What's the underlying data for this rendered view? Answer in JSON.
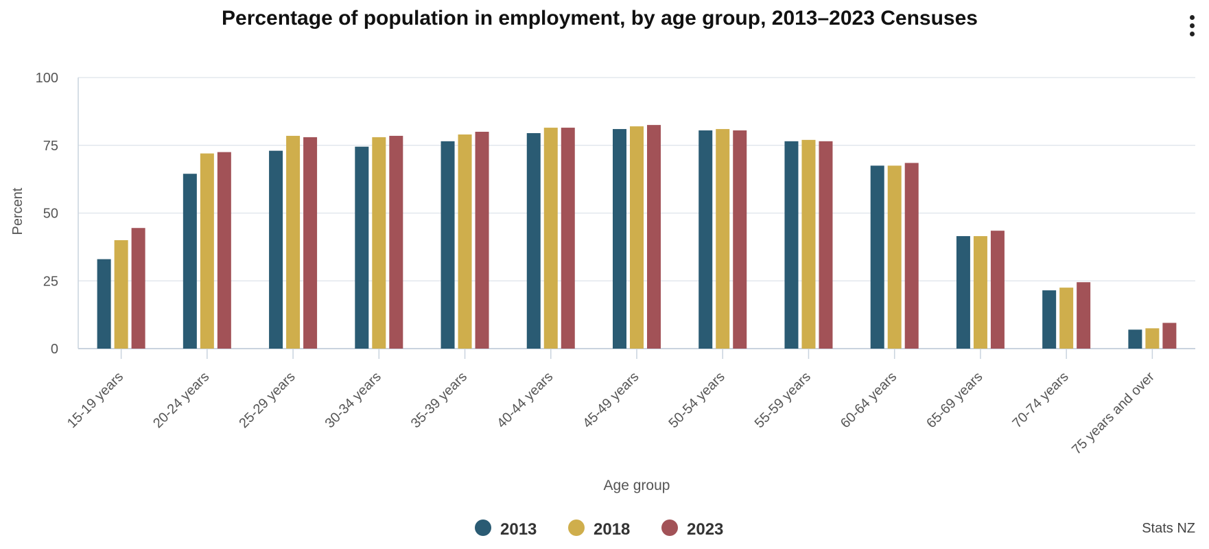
{
  "menu": {
    "icon": "more-vertical-icon"
  },
  "credit": "Stats NZ",
  "colors": {
    "2013": "#2a5b73",
    "2018": "#cfae4c",
    "2023": "#a25257",
    "grid": "#dde3ea",
    "axis_text": "#555555"
  },
  "chart_data": {
    "type": "bar",
    "title": "Percentage of population in employment, by age group, 2013–2023 Censuses",
    "xlabel": "Age group",
    "ylabel": "Percent",
    "ylim": [
      0,
      100
    ],
    "yticks": [
      0,
      25,
      50,
      75,
      100
    ],
    "grid": true,
    "legend_position": "bottom-center",
    "categories": [
      "15-19 years",
      "20-24 years",
      "25-29 years",
      "30-34 years",
      "35-39 years",
      "40-44 years",
      "45-49 years",
      "50-54 years",
      "55-59 years",
      "60-64 years",
      "65-69 years",
      "70-74 years",
      "75 years and over"
    ],
    "series": [
      {
        "name": "2013",
        "color": "#2a5b73",
        "values": [
          33,
          64.5,
          73,
          74.5,
          76.5,
          79.5,
          81,
          80.5,
          76.5,
          67.5,
          41.5,
          21.5,
          7
        ]
      },
      {
        "name": "2018",
        "color": "#cfae4c",
        "values": [
          40,
          72,
          78.5,
          78,
          79,
          81.5,
          82,
          81,
          77,
          67.5,
          41.5,
          22.5,
          7.5
        ]
      },
      {
        "name": "2023",
        "color": "#a25257",
        "values": [
          44.5,
          72.5,
          78,
          78.5,
          80,
          81.5,
          82.5,
          80.5,
          76.5,
          68.5,
          43.5,
          24.5,
          9.5
        ]
      }
    ]
  }
}
